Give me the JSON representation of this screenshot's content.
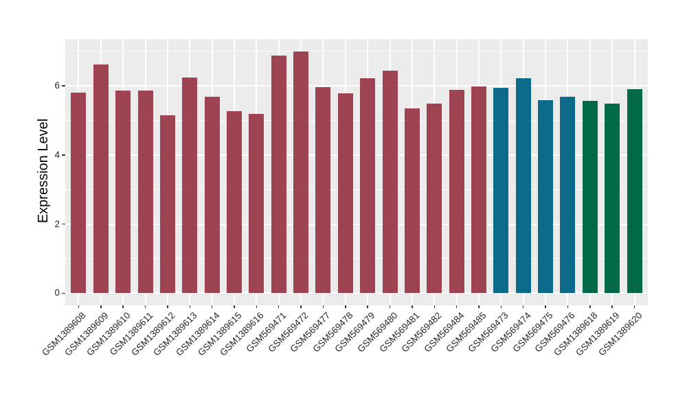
{
  "chart_data": {
    "type": "bar",
    "title": "",
    "xlabel": "",
    "ylabel": "Expression Level",
    "legend": "none",
    "grid": "on",
    "panel_background": "#EBEBEB",
    "gridline_color": "#FFFFFF",
    "axis_text_color": "#262626",
    "y_axis_domain": [
      -0.35,
      7.35
    ],
    "ylim": [
      0,
      7
    ],
    "yticks_major": [
      0,
      2,
      4,
      6
    ],
    "yticks_minor": [
      1,
      3,
      5,
      7
    ],
    "x_label_rotation_deg": 45,
    "categories": [
      "GSM1389608",
      "GSM1389609",
      "GSM1389610",
      "GSM1389611",
      "GSM1389612",
      "GSM1389613",
      "GSM1389614",
      "GSM1389615",
      "GSM1389616",
      "GSM569471",
      "GSM569472",
      "GSM569477",
      "GSM569478",
      "GSM569479",
      "GSM569480",
      "GSM569481",
      "GSM569482",
      "GSM569484",
      "GSM569485",
      "GSM569473",
      "GSM569474",
      "GSM569475",
      "GSM569476",
      "GSM1389618",
      "GSM1389619",
      "GSM1389620"
    ],
    "values": [
      5.8,
      6.62,
      5.87,
      5.87,
      5.14,
      6.24,
      5.68,
      5.27,
      5.18,
      6.87,
      6.99,
      5.97,
      5.78,
      6.21,
      6.43,
      5.35,
      5.48,
      5.88,
      5.98,
      5.94,
      6.21,
      5.58,
      5.68,
      5.57,
      5.48,
      5.9
    ],
    "groups": [
      "A",
      "A",
      "A",
      "A",
      "A",
      "A",
      "A",
      "A",
      "A",
      "A",
      "A",
      "A",
      "A",
      "A",
      "A",
      "A",
      "A",
      "A",
      "A",
      "B",
      "B",
      "B",
      "B",
      "C",
      "C",
      "C"
    ],
    "group_colors": {
      "A": "#9E4352",
      "B": "#0C6A8A",
      "C": "#016947"
    }
  }
}
